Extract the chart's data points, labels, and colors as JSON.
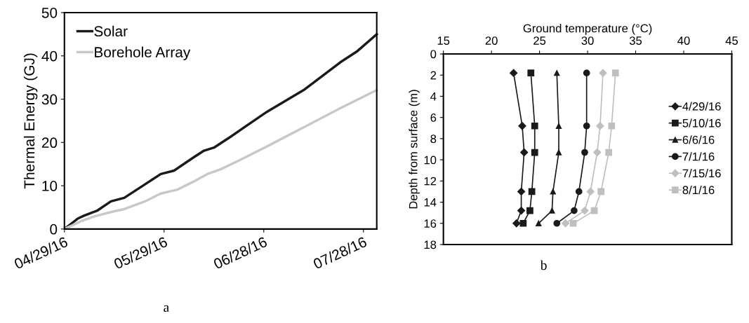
{
  "chart_data": [
    {
      "type": "line",
      "ylabel": "Thermal Energy (GJ)",
      "legend": "top left",
      "grid": false,
      "marker": "none",
      "line_style": "solid",
      "xlim": [
        "2016-04-29",
        "2016-08-01"
      ],
      "ylim": [
        0,
        50
      ],
      "xticks": [
        {
          "value": "2016-04-29",
          "label": "04/29/16"
        },
        {
          "value": "2016-05-29",
          "label": "05/29/16"
        },
        {
          "value": "2016-06-28",
          "label": "06/28/16"
        },
        {
          "value": "2016-07-28",
          "label": "07/28/16"
        }
      ],
      "yticks": [
        0,
        10,
        20,
        30,
        40,
        50
      ],
      "annotations": [
        "a"
      ],
      "series": [
        {
          "name": "Solar",
          "color": "#1a1a1a",
          "x": [
            "2016-04-29",
            "2016-05-03",
            "2016-05-05",
            "2016-05-09",
            "2016-05-13",
            "2016-05-17",
            "2016-05-23",
            "2016-05-28",
            "2016-06-01",
            "2016-06-07",
            "2016-06-10",
            "2016-06-13",
            "2016-06-18",
            "2016-06-21",
            "2016-06-29",
            "2016-07-10",
            "2016-07-21",
            "2016-07-26",
            "2016-08-01"
          ],
          "values": [
            0,
            2.4,
            3.1,
            4.3,
            6.4,
            7.2,
            10.2,
            12.7,
            13.5,
            16.6,
            18.1,
            18.8,
            21.3,
            22.9,
            27.1,
            32.1,
            38.5,
            41.0,
            45.0
          ]
        },
        {
          "name": "Borehole Array",
          "color": "#c8c8c8",
          "x": [
            "2016-04-29",
            "2016-05-04",
            "2016-05-08",
            "2016-05-14",
            "2016-05-17",
            "2016-05-23",
            "2016-05-28",
            "2016-06-02",
            "2016-06-07",
            "2016-06-11",
            "2016-06-15",
            "2016-06-21",
            "2016-06-29",
            "2016-07-10",
            "2016-07-21",
            "2016-08-01"
          ],
          "values": [
            0,
            1.8,
            2.9,
            4.1,
            4.6,
            6.3,
            8.2,
            9.1,
            11.0,
            12.7,
            13.8,
            16.0,
            19.1,
            23.5,
            27.9,
            32.1
          ]
        }
      ]
    },
    {
      "type": "line",
      "xlabel": "Ground temperature (°C)",
      "ylabel": "Depth from surface (m)",
      "legend": "right",
      "grid": false,
      "line_style": "solid",
      "xlim": [
        15,
        45
      ],
      "xticks": [
        15,
        20,
        25,
        30,
        35,
        40,
        45
      ],
      "ylim": [
        18,
        0
      ],
      "yticks": [
        0,
        2,
        4,
        6,
        8,
        10,
        12,
        14,
        16,
        18
      ],
      "annotations": [
        "b"
      ],
      "series": [
        {
          "name": "4/29/16",
          "color": "#1a1a1a",
          "marker": "diamond",
          "x": [
            22.3,
            23.2,
            23.4,
            23.1,
            23.1,
            22.6
          ],
          "values": [
            1.8,
            6.8,
            9.3,
            13,
            14.8,
            16
          ]
        },
        {
          "name": "5/10/16",
          "color": "#1a1a1a",
          "marker": "square",
          "x": [
            24.1,
            24.5,
            24.5,
            24.2,
            24.0,
            23.3
          ],
          "values": [
            1.8,
            6.8,
            9.3,
            13,
            14.8,
            16
          ]
        },
        {
          "name": "6/6/16",
          "color": "#1a1a1a",
          "marker": "triangle",
          "x": [
            26.8,
            27.0,
            27.0,
            26.4,
            26.3,
            24.9
          ],
          "values": [
            1.8,
            6.8,
            9.3,
            13,
            14.8,
            16
          ]
        },
        {
          "name": "7/1/16",
          "color": "#1a1a1a",
          "marker": "circle",
          "x": [
            29.9,
            29.9,
            29.7,
            29.1,
            28.6,
            26.8
          ],
          "values": [
            1.8,
            6.8,
            9.3,
            13,
            14.8,
            16
          ]
        },
        {
          "name": "7/15/16",
          "color": "#bfbfbf",
          "marker": "diamond",
          "x": [
            31.6,
            31.3,
            31.0,
            30.3,
            29.7,
            27.7
          ],
          "values": [
            1.8,
            6.8,
            9.3,
            13,
            14.8,
            16
          ]
        },
        {
          "name": "8/1/16",
          "color": "#bfbfbf",
          "marker": "square",
          "x": [
            32.9,
            32.5,
            32.2,
            31.4,
            30.7,
            28.5
          ],
          "values": [
            1.8,
            6.8,
            9.3,
            13,
            14.8,
            16
          ]
        }
      ]
    }
  ]
}
